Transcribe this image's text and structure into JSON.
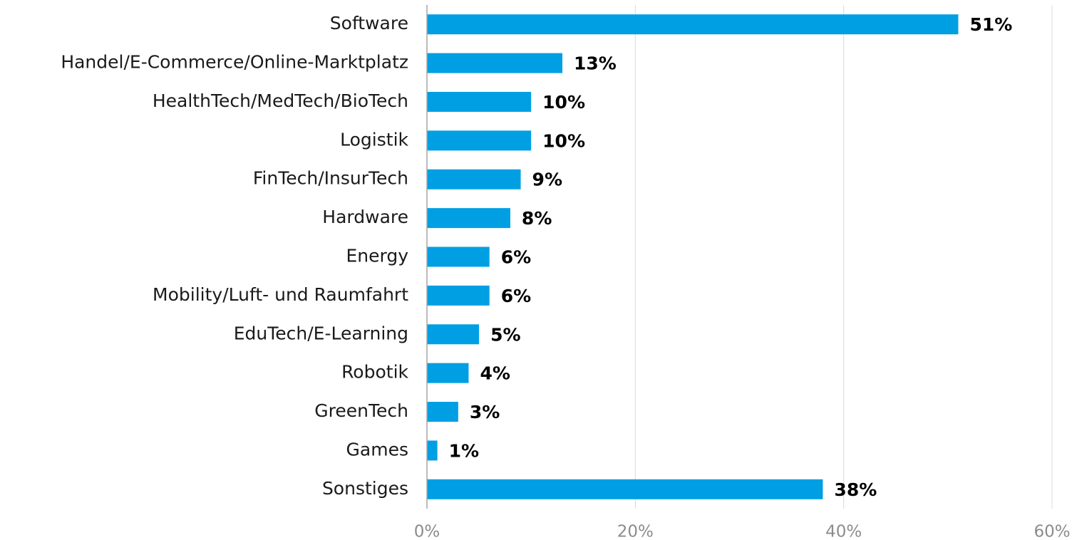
{
  "chart_data": {
    "type": "barh",
    "categories": [
      "Software",
      "Handel/E-Commerce/Online-Marktplatz",
      "HealthTech/MedTech/BioTech",
      "Logistik",
      "FinTech/InsurTech",
      "Hardware",
      "Energy",
      "Mobility/Luft- und Raumfahrt",
      "EduTech/E-Learning",
      "Robotik",
      "GreenTech",
      "Games",
      "Sonstiges"
    ],
    "values": [
      51,
      13,
      10,
      10,
      9,
      8,
      6,
      6,
      5,
      4,
      3,
      1,
      38
    ],
    "value_labels": [
      "51%",
      "13%",
      "10%",
      "10%",
      "9%",
      "8%",
      "6%",
      "6%",
      "5%",
      "4%",
      "3%",
      "1%",
      "38%"
    ],
    "color": "#009fe3",
    "xlim": [
      0,
      60
    ],
    "xticks": [
      {
        "value": 0,
        "label": "0%"
      },
      {
        "value": 20,
        "label": "20%"
      },
      {
        "value": 40,
        "label": "40%"
      },
      {
        "value": 60,
        "label": "60%"
      }
    ],
    "grid": true
  }
}
